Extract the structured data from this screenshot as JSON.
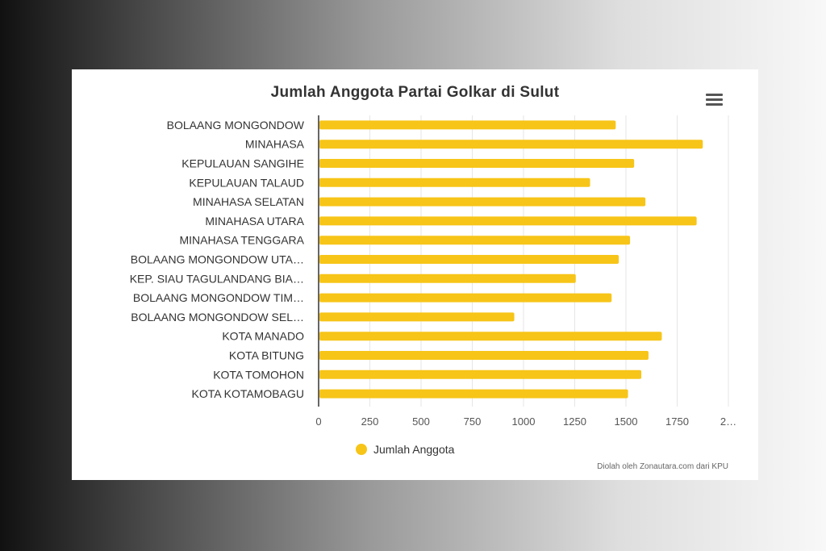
{
  "chart_data": {
    "type": "bar",
    "orientation": "horizontal",
    "title": "Jumlah Anggota Partai Golkar di Sulut",
    "categories": [
      "BOLAANG MONGONDOW",
      "MINAHASA",
      "KEPULAUAN SANGIHE",
      "KEPULAUAN TALAUD",
      "MINAHASA SELATAN",
      "MINAHASA UTARA",
      "MINAHASA TENGGARA",
      "BOLAANG MONGONDOW UTA…",
      "KEP. SIAU TAGULANDANG BIA…",
      "BOLAANG MONGONDOW TIM…",
      "BOLAANG MONGONDOW SEL…",
      "KOTA MANADO",
      "KOTA BITUNG",
      "KOTA TOMOHON",
      "KOTA KOTAMOBAGU"
    ],
    "series": [
      {
        "name": "Jumlah Anggota",
        "color": "#F7C518",
        "values": [
          1450,
          1875,
          1540,
          1325,
          1595,
          1845,
          1520,
          1465,
          1255,
          1430,
          955,
          1675,
          1610,
          1575,
          1510
        ]
      }
    ],
    "xticks": [
      "0",
      "250",
      "500",
      "750",
      "1000",
      "1250",
      "1500",
      "1750",
      "2…"
    ],
    "xlim": [
      0,
      2000
    ],
    "grid": "vertical",
    "legend_position": "bottom-center"
  },
  "credit": "Diolah oleh Zonautara.com dari KPU",
  "menu_icon": "hamburger-menu-icon"
}
